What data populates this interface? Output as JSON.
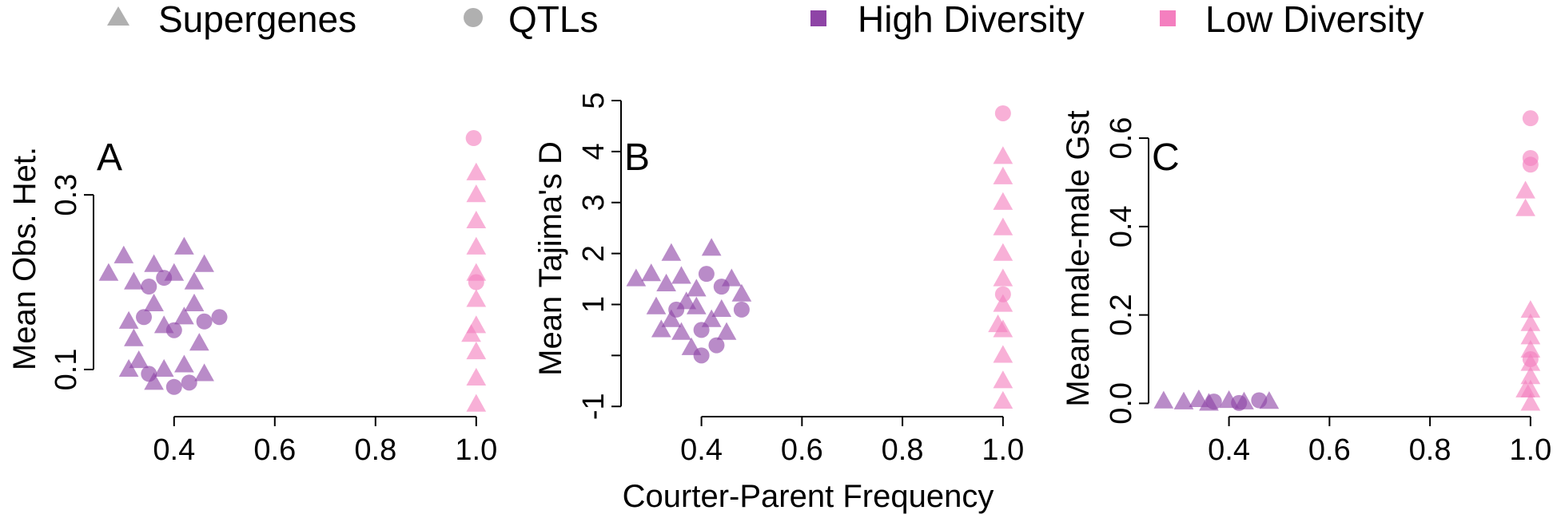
{
  "legend": {
    "shape": [
      {
        "label": "Supergenes",
        "marker": "triangle",
        "color": "#b0b0b0"
      },
      {
        "label": "QTLs",
        "marker": "circle",
        "color": "#b0b0b0"
      }
    ],
    "diversity": [
      {
        "label": "High Diversity",
        "marker": "square",
        "color": "#8e44a6"
      },
      {
        "label": "Low Diversity",
        "marker": "square",
        "color": "#f47fbf"
      }
    ]
  },
  "shared_xlabel": "Courter-Parent Frequency",
  "colors": {
    "high": "#8e44a6",
    "low": "#f47fbf",
    "legend_gray": "#b0b0b0"
  },
  "chart_data": [
    {
      "type": "scatter",
      "panel": "A",
      "xlabel": "",
      "ylabel": "Mean Obs. Het.",
      "xlim": [
        0.24,
        1.04
      ],
      "ylim": [
        0.046,
        0.408
      ],
      "xticks": [
        0.4,
        0.6,
        0.8,
        1.0
      ],
      "xtick_labels": [
        "0.4",
        "0.6",
        "0.8",
        "1.0"
      ],
      "yticks": [
        0.1,
        0.3
      ],
      "ytick_labels": [
        "0.1",
        "0.3"
      ],
      "series": [
        {
          "name": "High Diversity",
          "color": "#8e44a6",
          "points": [
            {
              "x": 0.27,
              "y": 0.21,
              "m": "t"
            },
            {
              "x": 0.36,
              "y": 0.22,
              "m": "t"
            },
            {
              "x": 0.32,
              "y": 0.2,
              "m": "t"
            },
            {
              "x": 0.4,
              "y": 0.21,
              "m": "t"
            },
            {
              "x": 0.44,
              "y": 0.2,
              "m": "t"
            },
            {
              "x": 0.46,
              "y": 0.22,
              "m": "t"
            },
            {
              "x": 0.35,
              "y": 0.195,
              "m": "c"
            },
            {
              "x": 0.42,
              "y": 0.24,
              "m": "t"
            },
            {
              "x": 0.3,
              "y": 0.23,
              "m": "t"
            },
            {
              "x": 0.38,
              "y": 0.205,
              "m": "c"
            },
            {
              "x": 0.31,
              "y": 0.155,
              "m": "t"
            },
            {
              "x": 0.34,
              "y": 0.16,
              "m": "c"
            },
            {
              "x": 0.38,
              "y": 0.15,
              "m": "t"
            },
            {
              "x": 0.42,
              "y": 0.16,
              "m": "t"
            },
            {
              "x": 0.46,
              "y": 0.155,
              "m": "c"
            },
            {
              "x": 0.49,
              "y": 0.16,
              "m": "c"
            },
            {
              "x": 0.36,
              "y": 0.175,
              "m": "t"
            },
            {
              "x": 0.4,
              "y": 0.145,
              "m": "c"
            },
            {
              "x": 0.44,
              "y": 0.175,
              "m": "t"
            },
            {
              "x": 0.32,
              "y": 0.135,
              "m": "t"
            },
            {
              "x": 0.45,
              "y": 0.13,
              "m": "t"
            },
            {
              "x": 0.31,
              "y": 0.1,
              "m": "t"
            },
            {
              "x": 0.35,
              "y": 0.095,
              "m": "c"
            },
            {
              "x": 0.38,
              "y": 0.1,
              "m": "t"
            },
            {
              "x": 0.42,
              "y": 0.105,
              "m": "t"
            },
            {
              "x": 0.46,
              "y": 0.095,
              "m": "t"
            },
            {
              "x": 0.33,
              "y": 0.11,
              "m": "t"
            },
            {
              "x": 0.4,
              "y": 0.08,
              "m": "c"
            },
            {
              "x": 0.43,
              "y": 0.085,
              "m": "c"
            },
            {
              "x": 0.36,
              "y": 0.085,
              "m": "t"
            }
          ]
        },
        {
          "name": "Low Diversity",
          "color": "#f47fbf",
          "points": [
            {
              "x": 0.995,
              "y": 0.365,
              "m": "c"
            },
            {
              "x": 1.0,
              "y": 0.06,
              "m": "t"
            },
            {
              "x": 1.0,
              "y": 0.09,
              "m": "t"
            },
            {
              "x": 1.0,
              "y": 0.12,
              "m": "t"
            },
            {
              "x": 1.0,
              "y": 0.15,
              "m": "t"
            },
            {
              "x": 1.0,
              "y": 0.18,
              "m": "t"
            },
            {
              "x": 1.0,
              "y": 0.21,
              "m": "t"
            },
            {
              "x": 1.0,
              "y": 0.24,
              "m": "t"
            },
            {
              "x": 1.0,
              "y": 0.27,
              "m": "t"
            },
            {
              "x": 1.0,
              "y": 0.3,
              "m": "t"
            },
            {
              "x": 1.0,
              "y": 0.325,
              "m": "t"
            },
            {
              "x": 0.99,
              "y": 0.14,
              "m": "t"
            },
            {
              "x": 1.0,
              "y": 0.2,
              "m": "c"
            }
          ]
        }
      ]
    },
    {
      "type": "scatter",
      "panel": "B",
      "xlabel": "",
      "ylabel": "Mean Tajima's D",
      "xlim": [
        0.24,
        1.04
      ],
      "ylim": [
        -1.2,
        5.0
      ],
      "xticks": [
        0.4,
        0.6,
        0.8,
        1.0
      ],
      "xtick_labels": [
        "0.4",
        "0.6",
        "0.8",
        "1.0"
      ],
      "yticks": [
        -1,
        0,
        1,
        2,
        3,
        4,
        5
      ],
      "ytick_labels": [
        "-1",
        "",
        "1",
        "2",
        "3",
        "4",
        "5"
      ],
      "series": [
        {
          "name": "High Diversity",
          "color": "#8e44a6",
          "points": [
            {
              "x": 0.27,
              "y": 1.5,
              "m": "t"
            },
            {
              "x": 0.34,
              "y": 2.0,
              "m": "t"
            },
            {
              "x": 0.42,
              "y": 2.1,
              "m": "t"
            },
            {
              "x": 0.3,
              "y": 1.6,
              "m": "t"
            },
            {
              "x": 0.36,
              "y": 1.55,
              "m": "t"
            },
            {
              "x": 0.41,
              "y": 1.6,
              "m": "c"
            },
            {
              "x": 0.46,
              "y": 1.5,
              "m": "t"
            },
            {
              "x": 0.33,
              "y": 1.4,
              "m": "t"
            },
            {
              "x": 0.39,
              "y": 1.3,
              "m": "t"
            },
            {
              "x": 0.44,
              "y": 1.35,
              "m": "c"
            },
            {
              "x": 0.48,
              "y": 1.2,
              "m": "t"
            },
            {
              "x": 0.31,
              "y": 0.95,
              "m": "t"
            },
            {
              "x": 0.35,
              "y": 0.9,
              "m": "c"
            },
            {
              "x": 0.39,
              "y": 0.95,
              "m": "t"
            },
            {
              "x": 0.44,
              "y": 0.9,
              "m": "t"
            },
            {
              "x": 0.48,
              "y": 0.9,
              "m": "c"
            },
            {
              "x": 0.37,
              "y": 1.05,
              "m": "t"
            },
            {
              "x": 0.32,
              "y": 0.5,
              "m": "t"
            },
            {
              "x": 0.36,
              "y": 0.45,
              "m": "t"
            },
            {
              "x": 0.4,
              "y": 0.5,
              "m": "c"
            },
            {
              "x": 0.45,
              "y": 0.45,
              "m": "t"
            },
            {
              "x": 0.4,
              "y": 0.0,
              "m": "c"
            },
            {
              "x": 0.38,
              "y": 0.15,
              "m": "t"
            },
            {
              "x": 0.43,
              "y": 0.2,
              "m": "c"
            },
            {
              "x": 0.34,
              "y": 0.7,
              "m": "t"
            },
            {
              "x": 0.42,
              "y": 0.7,
              "m": "t"
            }
          ]
        },
        {
          "name": "Low Diversity",
          "color": "#f47fbf",
          "points": [
            {
              "x": 1.0,
              "y": 4.75,
              "m": "c"
            },
            {
              "x": 1.0,
              "y": -0.9,
              "m": "t"
            },
            {
              "x": 1.0,
              "y": -0.5,
              "m": "t"
            },
            {
              "x": 1.0,
              "y": 0.0,
              "m": "t"
            },
            {
              "x": 1.0,
              "y": 0.5,
              "m": "t"
            },
            {
              "x": 1.0,
              "y": 1.0,
              "m": "t"
            },
            {
              "x": 1.0,
              "y": 1.5,
              "m": "t"
            },
            {
              "x": 1.0,
              "y": 2.0,
              "m": "t"
            },
            {
              "x": 1.0,
              "y": 2.5,
              "m": "t"
            },
            {
              "x": 1.0,
              "y": 3.0,
              "m": "t"
            },
            {
              "x": 1.0,
              "y": 3.5,
              "m": "t"
            },
            {
              "x": 1.0,
              "y": 3.9,
              "m": "t"
            },
            {
              "x": 0.99,
              "y": 0.6,
              "m": "t"
            },
            {
              "x": 1.0,
              "y": 1.2,
              "m": "c"
            }
          ]
        }
      ]
    },
    {
      "type": "scatter",
      "panel": "C",
      "xlabel": "",
      "ylabel": "Mean male-male Gst",
      "xlim": [
        0.24,
        1.04
      ],
      "ylim": [
        -0.03,
        0.685
      ],
      "xticks": [
        0.4,
        0.6,
        0.8,
        1.0
      ],
      "xtick_labels": [
        "0.4",
        "0.6",
        "0.8",
        "1.0"
      ],
      "yticks": [
        0.0,
        0.2,
        0.4,
        0.6
      ],
      "ytick_labels": [
        "0.0",
        "0.2",
        "0.4",
        "0.6"
      ],
      "series": [
        {
          "name": "High Diversity",
          "color": "#8e44a6",
          "points": [
            {
              "x": 0.27,
              "y": 0.005,
              "m": "t"
            },
            {
              "x": 0.31,
              "y": 0.003,
              "m": "t"
            },
            {
              "x": 0.34,
              "y": 0.008,
              "m": "t"
            },
            {
              "x": 0.37,
              "y": 0.004,
              "m": "c"
            },
            {
              "x": 0.4,
              "y": 0.006,
              "m": "t"
            },
            {
              "x": 0.43,
              "y": 0.003,
              "m": "t"
            },
            {
              "x": 0.46,
              "y": 0.007,
              "m": "c"
            },
            {
              "x": 0.48,
              "y": 0.004,
              "m": "t"
            },
            {
              "x": 0.36,
              "y": 0.0,
              "m": "t"
            },
            {
              "x": 0.42,
              "y": 0.001,
              "m": "c"
            }
          ]
        },
        {
          "name": "Low Diversity",
          "color": "#f47fbf",
          "points": [
            {
              "x": 1.0,
              "y": 0.645,
              "m": "c"
            },
            {
              "x": 1.0,
              "y": 0.555,
              "m": "c"
            },
            {
              "x": 1.0,
              "y": 0.54,
              "m": "c"
            },
            {
              "x": 0.99,
              "y": 0.48,
              "m": "t"
            },
            {
              "x": 0.99,
              "y": 0.44,
              "m": "t"
            },
            {
              "x": 1.0,
              "y": 0.0,
              "m": "t"
            },
            {
              "x": 1.0,
              "y": 0.03,
              "m": "t"
            },
            {
              "x": 1.0,
              "y": 0.06,
              "m": "t"
            },
            {
              "x": 1.0,
              "y": 0.09,
              "m": "t"
            },
            {
              "x": 1.0,
              "y": 0.12,
              "m": "t"
            },
            {
              "x": 1.0,
              "y": 0.15,
              "m": "t"
            },
            {
              "x": 1.0,
              "y": 0.18,
              "m": "t"
            },
            {
              "x": 1.0,
              "y": 0.21,
              "m": "t"
            },
            {
              "x": 0.99,
              "y": 0.03,
              "m": "t"
            },
            {
              "x": 1.0,
              "y": 0.1,
              "m": "c"
            }
          ]
        }
      ]
    }
  ]
}
